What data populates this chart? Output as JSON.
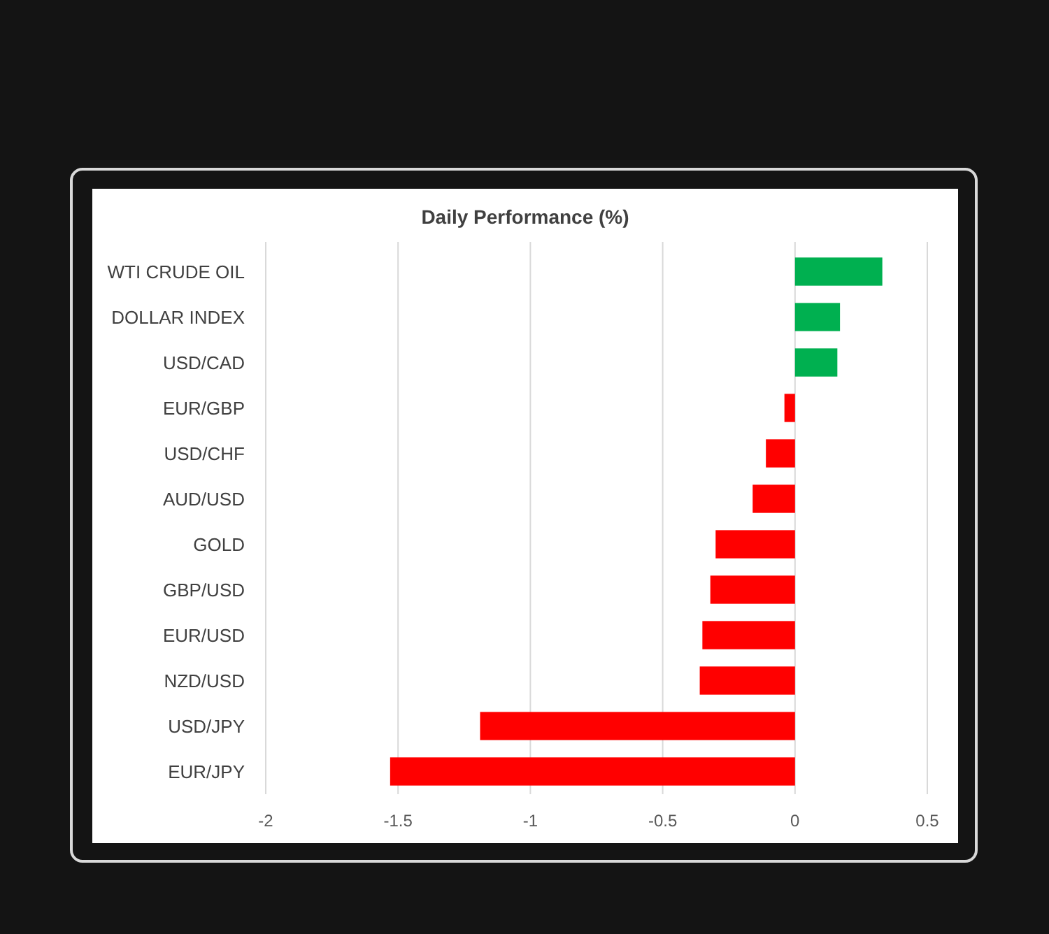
{
  "chart_data": {
    "type": "bar",
    "orientation": "horizontal",
    "title": "Daily Performance (%)",
    "categories": [
      "WTI CRUDE OIL",
      "DOLLAR INDEX",
      "USD/CAD",
      "EUR/GBP",
      "USD/CHF",
      "AUD/USD",
      "GOLD",
      "GBP/USD",
      "EUR/USD",
      "NZD/USD",
      "USD/JPY",
      "EUR/JPY"
    ],
    "values": [
      0.33,
      0.17,
      0.16,
      -0.04,
      -0.11,
      -0.16,
      -0.3,
      -0.32,
      -0.35,
      -0.36,
      -1.19,
      -1.53
    ],
    "colors": [
      "#00b050",
      "#00b050",
      "#00b050",
      "#ff0000",
      "#ff0000",
      "#ff0000",
      "#ff0000",
      "#ff0000",
      "#ff0000",
      "#ff0000",
      "#ff0000",
      "#ff0000"
    ],
    "xlim": [
      -2,
      0.5
    ],
    "xticks": [
      -2,
      -1.5,
      -1,
      -0.5,
      0,
      0.5
    ],
    "grid": "x"
  }
}
